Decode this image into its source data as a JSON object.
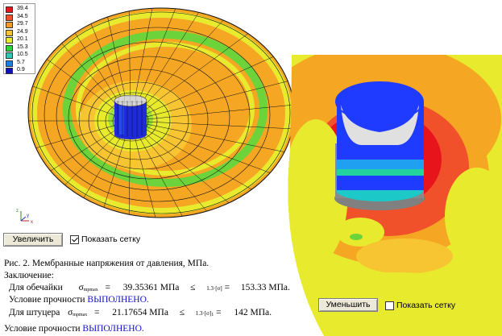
{
  "legend": {
    "values": [
      "39.4",
      "34.5",
      "29.7",
      "24.9",
      "20.1",
      "15.3",
      "10.5",
      "5.7",
      "0.9"
    ],
    "colors": [
      "#e8141c",
      "#f0502a",
      "#f59a25",
      "#f7c532",
      "#e8ea2e",
      "#2bd33c",
      "#2ec9b6",
      "#1a7fe0",
      "#1010b8"
    ]
  },
  "axes": {
    "z": "z",
    "y": "y",
    "x": "x"
  },
  "controls": {
    "zoom_in_label": "Увеличить",
    "show_grid_label_left": "Показать сетку",
    "zoom_out_label": "Уменьшить",
    "show_grid_label_right": "Показать сетку",
    "left_checked": true,
    "right_checked": false
  },
  "text": {
    "caption": "Рис. 2. Мембранные напряжения от давления, МПа.",
    "conclusion": "Заключение:",
    "line1_label": "Для обечайки",
    "line1_sigma": "σ",
    "line1_sub": "mpmax",
    "line1_eq": "=",
    "line1_value": "39.35361",
    "line1_unit": "МПа",
    "line1_le": "≤",
    "line1_factor": "1.3·[σ]",
    "line1_eq2": "=",
    "line1_allow": "153.33 МПа.",
    "cond1_prefix": "Условие прочности",
    "cond1_result": "ВЫПОЛНЕНО.",
    "line2_label": "Для штуцера",
    "line2_sigma": "σ",
    "line2_sub": "mpmax",
    "line2_eq": "=",
    "line2_value": "21.17654",
    "line2_unit": "МПа",
    "line2_le": "≤",
    "line2_factor": "1.3·[σ]",
    "line2_factor_sub": "1",
    "line2_eq2": "=",
    "line2_allow": "142 МПа.",
    "cond2_prefix": "Условие прочности",
    "cond2_result": "ВЫПОЛНЕНО."
  }
}
